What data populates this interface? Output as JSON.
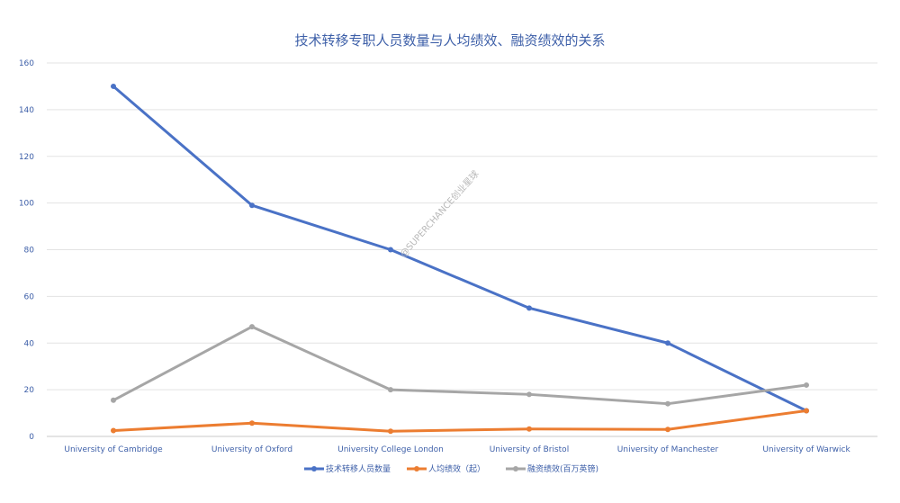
{
  "chart_data": {
    "type": "line",
    "title": "技术转移专职人员数量与人均绩效、融资绩效的关系",
    "categories": [
      "University of Cambridge",
      "University of Oxford",
      "University College London",
      "University of Bristol",
      "University of Manchester",
      "University of Warwick"
    ],
    "ylim": [
      0,
      160
    ],
    "yticks": [
      0,
      20,
      40,
      60,
      80,
      100,
      120,
      140,
      160
    ],
    "grid": true,
    "legend_position": "bottom",
    "series": [
      {
        "name": "技术转移人员数量",
        "color": "#4a72c6",
        "values": [
          150,
          99,
          80,
          55,
          40,
          11
        ]
      },
      {
        "name": "人均绩效（起）",
        "color": "#ec7d31",
        "values": [
          2.5,
          5.7,
          2.2,
          3.2,
          3.0,
          11
        ]
      },
      {
        "name": "融资绩效(百万英镑)",
        "color": "#a6a6a6",
        "values": [
          15.5,
          47,
          20,
          18,
          14,
          22
        ]
      }
    ]
  },
  "watermark": "@SUPERCHANCE创业星球"
}
